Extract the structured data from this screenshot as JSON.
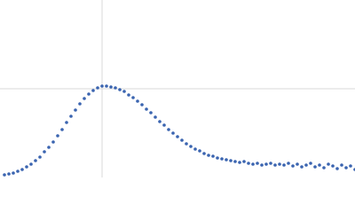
{
  "chart_data": {
    "type": "scatter",
    "color": "#3a64b0",
    "grid": true,
    "xlim": [
      0,
      4
    ],
    "ylim": [
      0,
      2
    ],
    "xticks": [
      1.15
    ],
    "yticks": [
      1
    ],
    "x": [
      0.05,
      0.1,
      0.15,
      0.2,
      0.25,
      0.3,
      0.35,
      0.4,
      0.45,
      0.5,
      0.55,
      0.6,
      0.65,
      0.7,
      0.75,
      0.8,
      0.85,
      0.9,
      0.95,
      1,
      1.05,
      1.1,
      1.15,
      1.2,
      1.25,
      1.3,
      1.35,
      1.4,
      1.45,
      1.5,
      1.55,
      1.6,
      1.65,
      1.7,
      1.75,
      1.8,
      1.85,
      1.9,
      1.95,
      2,
      2.05,
      2.1,
      2.15,
      2.2,
      2.25,
      2.3,
      2.35,
      2.4,
      2.45,
      2.5,
      2.55,
      2.6,
      2.65,
      2.7,
      2.75,
      2.8,
      2.85,
      2.9,
      2.95,
      3,
      3.05,
      3.1,
      3.15,
      3.2,
      3.25,
      3.3,
      3.35,
      3.4,
      3.45,
      3.5,
      3.55,
      3.6,
      3.65,
      3.7,
      3.75,
      3.8,
      3.85,
      3.9,
      3.95,
      4
    ],
    "values": [
      0.03,
      0.04,
      0.05,
      0.07,
      0.09,
      0.12,
      0.15,
      0.19,
      0.23,
      0.29,
      0.34,
      0.4,
      0.47,
      0.54,
      0.62,
      0.69,
      0.76,
      0.83,
      0.89,
      0.94,
      0.98,
      1.01,
      1.03,
      1.03,
      1.02,
      1.01,
      0.99,
      0.97,
      0.93,
      0.9,
      0.86,
      0.82,
      0.77,
      0.73,
      0.68,
      0.63,
      0.59,
      0.54,
      0.5,
      0.46,
      0.42,
      0.38,
      0.35,
      0.32,
      0.3,
      0.27,
      0.25,
      0.24,
      0.22,
      0.21,
      0.2,
      0.19,
      0.18,
      0.17,
      0.18,
      0.16,
      0.15,
      0.16,
      0.14,
      0.15,
      0.16,
      0.14,
      0.15,
      0.14,
      0.16,
      0.13,
      0.15,
      0.12,
      0.14,
      0.16,
      0.12,
      0.14,
      0.11,
      0.15,
      0.13,
      0.1,
      0.14,
      0.11,
      0.13,
      0.09
    ]
  }
}
